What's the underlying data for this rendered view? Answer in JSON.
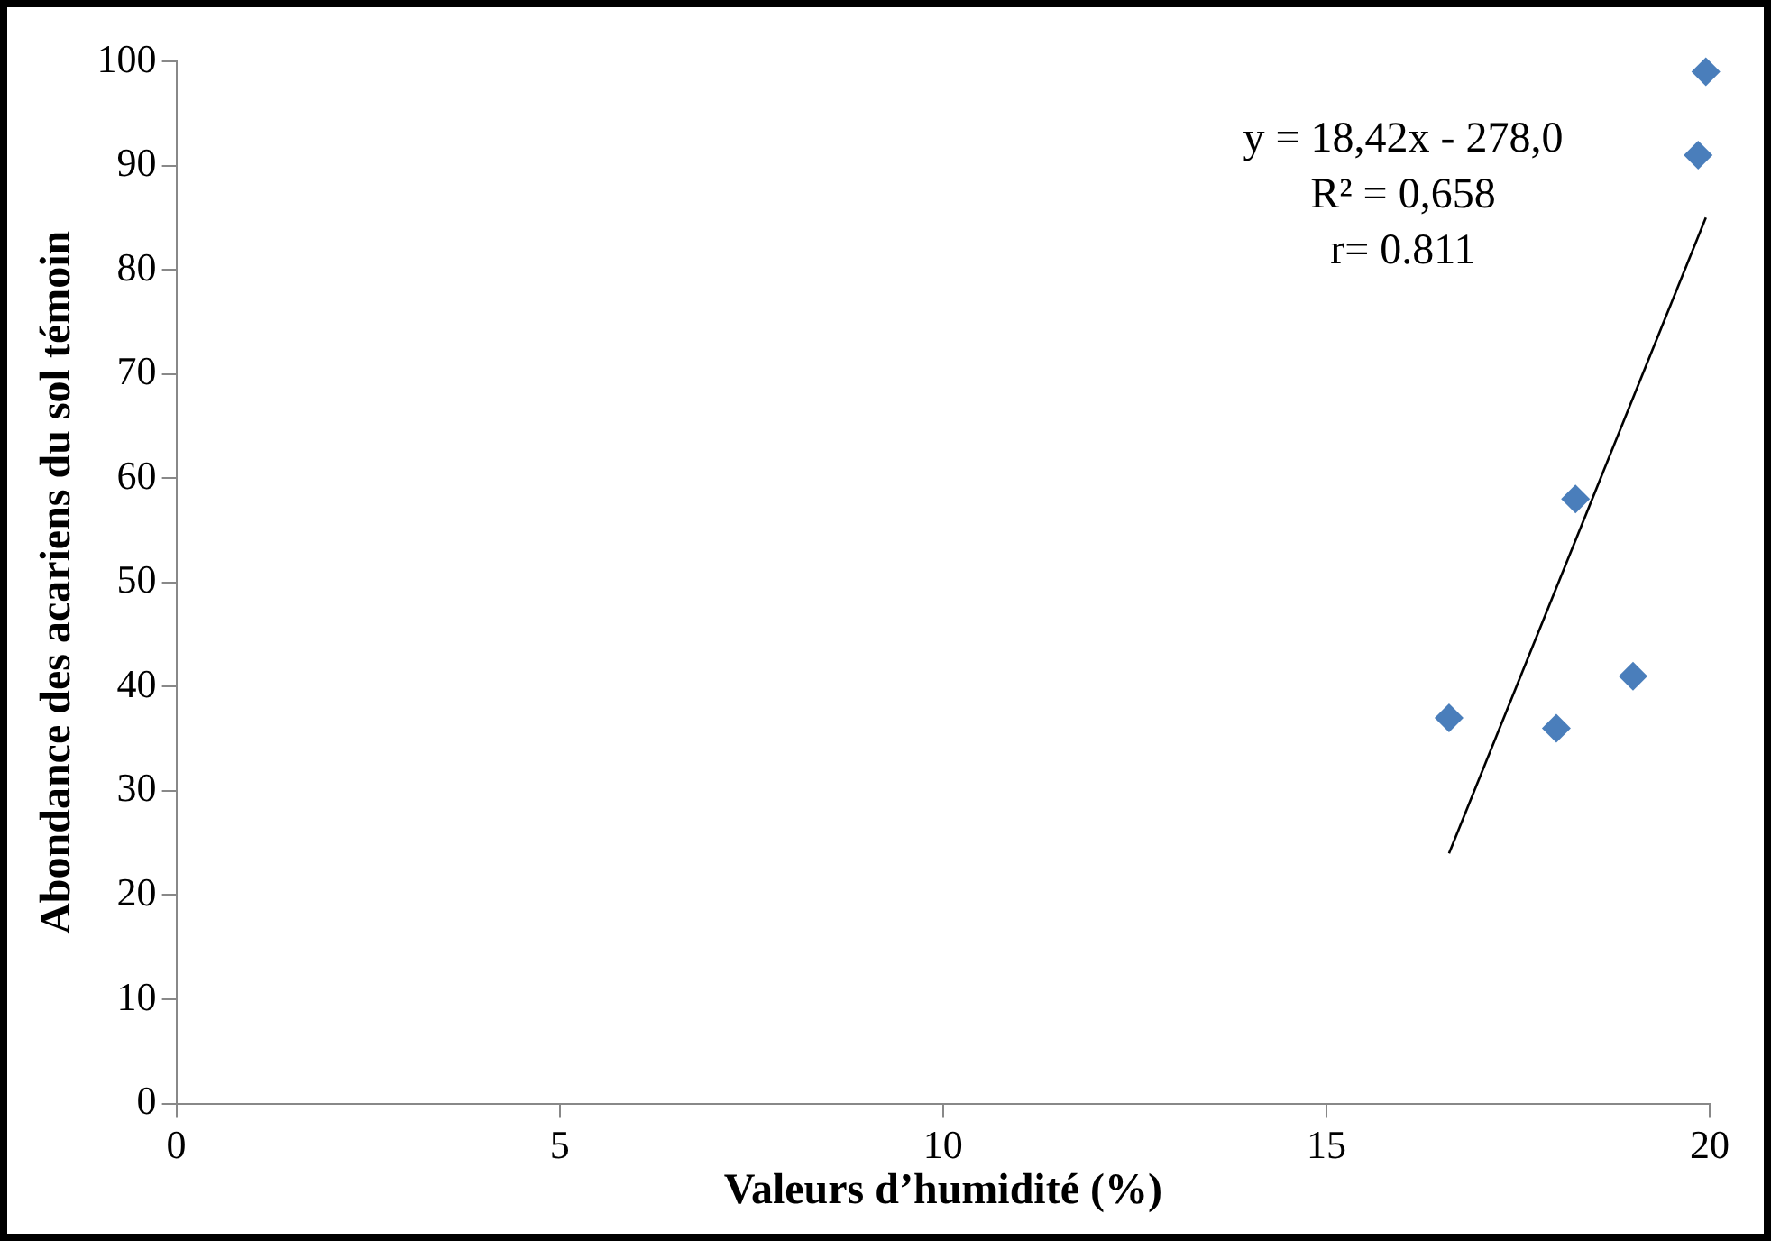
{
  "chart_data": {
    "type": "scatter",
    "xlabel": "Valeurs d’humidité (%)",
    "ylabel": "Abondance des acariens du sol témoin",
    "x": [
      16.6,
      18.0,
      18.25,
      19.0,
      19.85,
      19.95
    ],
    "series": [
      {
        "color": "#4a7ebb",
        "marker": "diamond",
        "values": [
          37,
          36,
          58,
          41,
          91,
          99
        ]
      },
      {
        "type": "line",
        "color": "#000000",
        "x": [
          16.6,
          19.95
        ],
        "values": [
          24,
          85
        ],
        "marker": "none",
        "line_style": "solid"
      }
    ],
    "annotations": [
      "y = 18,42x - 278,0",
      "R² = 0,658",
      "r= 0.811"
    ],
    "xlim": [
      0,
      20
    ],
    "xticks": [
      0,
      5,
      10,
      15,
      20
    ],
    "ylim": [
      0,
      100
    ],
    "yticks": [
      0,
      10,
      20,
      30,
      40,
      50,
      60,
      70,
      80,
      90,
      100
    ],
    "grid": false,
    "legend": false
  }
}
